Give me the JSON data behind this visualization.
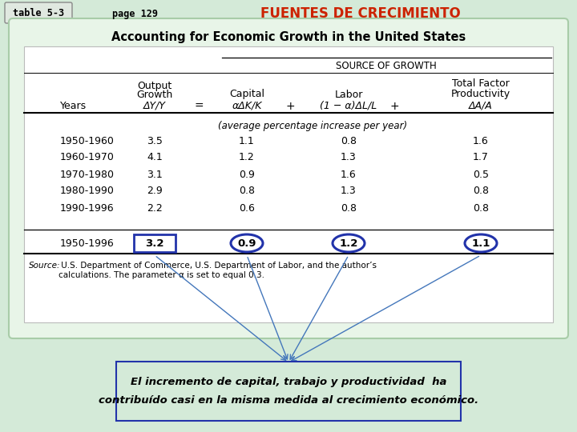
{
  "title_table": "table 5-3",
  "title_page": "page 129",
  "title_main": "FUENTES DE CRECIMIENTO",
  "subtitle": "Accounting for Economic Growth in the United States",
  "source_of_growth": "SOURCE OF GROWTH",
  "avg_note": "(average percentage increase per year)",
  "rows": [
    [
      "1950-1960",
      "3.5",
      "1.1",
      "0.8",
      "1.6"
    ],
    [
      "1960-1970",
      "4.1",
      "1.2",
      "1.3",
      "1.7"
    ],
    [
      "1970-1980",
      "3.1",
      "0.9",
      "1.6",
      "0.5"
    ],
    [
      "1980-1990",
      "2.9",
      "0.8",
      "1.3",
      "0.8"
    ],
    [
      "1990-1996",
      "2.2",
      "0.6",
      "0.8",
      "0.8"
    ]
  ],
  "total_row": [
    "1950-1996",
    "3.2",
    "0.9",
    "1.2",
    "1.1"
  ],
  "source_text_italic": "Source:",
  "source_text_normal": " U.S. Department of Commerce, U.S. Department of Labor, and the author’s\ncalculations. The parameter α is set to equal 0.3.",
  "bottom_text_line1": "El incremento de capital, trabajo y productividad  ha",
  "bottom_text_line2": "contribuído casi en la misma medida al crecimiento económico.",
  "bg_color": "#d4ead8",
  "outer_rect_color": "#c0ddc4",
  "inner_bg": "#ffffff",
  "header_orange": "#cc2200",
  "circle_color": "#2233aa",
  "rect_color": "#2233aa",
  "arrow_color": "#4477bb",
  "bottom_box_fill": "#d4ead8",
  "bottom_box_border": "#2233aa",
  "fig_w": 7.2,
  "fig_h": 5.4,
  "dpi": 100
}
